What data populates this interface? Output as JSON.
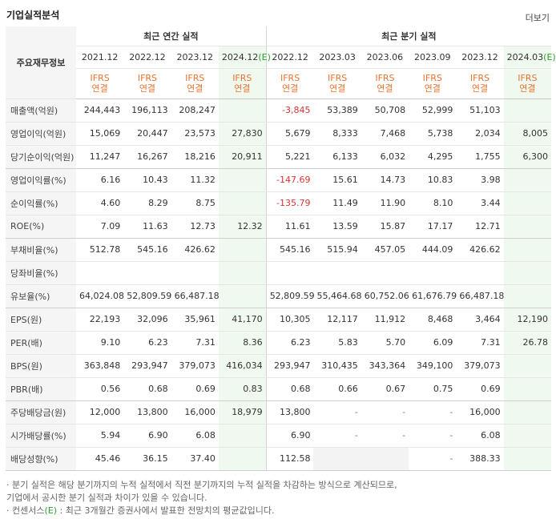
{
  "title": "기업실적분석",
  "more_label": "더보기",
  "label_header": "주요재무정보",
  "group_annual": "최근 연간 실적",
  "group_quarter": "최근 분기 실적",
  "periods": [
    "2021.12",
    "2022.12",
    "2023.12",
    "2024.12",
    "2022.12",
    "2023.03",
    "2023.06",
    "2023.09",
    "2023.12",
    "2024.03"
  ],
  "estimate_suffix": "(E)",
  "basis_top": "IFRS",
  "basis_bottom": "연결",
  "rows": [
    {
      "label": "매출액(억원)",
      "values": [
        "244,443",
        "196,113",
        "208,247",
        "",
        "-3,845",
        "53,389",
        "50,708",
        "52,999",
        "51,103",
        ""
      ]
    },
    {
      "label": "영업이익(억원)",
      "values": [
        "15,069",
        "20,447",
        "23,573",
        "27,830",
        "5,679",
        "8,333",
        "7,468",
        "5,738",
        "2,034",
        "8,005"
      ]
    },
    {
      "label": "당기순이익(억원)",
      "values": [
        "11,247",
        "16,267",
        "18,216",
        "20,911",
        "5,221",
        "6,133",
        "6,032",
        "4,295",
        "1,755",
        "6,300"
      ]
    },
    {
      "label": "영업이익률(%)",
      "values": [
        "6.16",
        "10.43",
        "11.32",
        "",
        "-147.69",
        "15.61",
        "14.73",
        "10.83",
        "3.98",
        ""
      ]
    },
    {
      "label": "순이익률(%)",
      "values": [
        "4.60",
        "8.29",
        "8.75",
        "",
        "-135.79",
        "11.49",
        "11.90",
        "8.10",
        "3.44",
        ""
      ]
    },
    {
      "label": "ROE(%)",
      "values": [
        "7.09",
        "11.63",
        "12.73",
        "12.32",
        "11.61",
        "13.59",
        "15.87",
        "17.17",
        "12.71",
        ""
      ]
    },
    {
      "label": "부채비율(%)",
      "values": [
        "512.78",
        "545.16",
        "426.62",
        "",
        "545.16",
        "515.94",
        "457.05",
        "444.09",
        "426.62",
        ""
      ]
    },
    {
      "label": "당좌비율(%)",
      "values": [
        "",
        "",
        "",
        "",
        "",
        "",
        "",
        "",
        "",
        ""
      ]
    },
    {
      "label": "유보율(%)",
      "values": [
        "64,024.08",
        "52,809.59",
        "66,487.18",
        "",
        "52,809.59",
        "55,464.68",
        "60,752.06",
        "61,676.79",
        "66,487.18",
        ""
      ]
    },
    {
      "label": "EPS(원)",
      "values": [
        "22,193",
        "32,096",
        "35,961",
        "41,170",
        "10,305",
        "12,117",
        "11,912",
        "8,468",
        "3,464",
        "12,190"
      ]
    },
    {
      "label": "PER(배)",
      "values": [
        "9.10",
        "6.23",
        "7.31",
        "8.36",
        "6.23",
        "5.83",
        "5.70",
        "6.09",
        "7.31",
        "26.78"
      ]
    },
    {
      "label": "BPS(원)",
      "values": [
        "363,848",
        "293,947",
        "379,073",
        "416,034",
        "293,947",
        "310,435",
        "343,364",
        "349,100",
        "379,073",
        ""
      ]
    },
    {
      "label": "PBR(배)",
      "values": [
        "0.56",
        "0.68",
        "0.69",
        "0.83",
        "0.68",
        "0.66",
        "0.67",
        "0.75",
        "0.69",
        ""
      ]
    },
    {
      "label": "주당배당금(원)",
      "values": [
        "12,000",
        "13,800",
        "16,000",
        "18,979",
        "13,800",
        "-",
        "-",
        "-",
        "16,000",
        ""
      ]
    },
    {
      "label": "시가배당률(%)",
      "values": [
        "5.94",
        "6.90",
        "6.08",
        "",
        "6.90",
        "-",
        "-",
        "-",
        "6.08",
        ""
      ]
    },
    {
      "label": "배당성향(%)",
      "values": [
        "45.46",
        "36.15",
        "37.40",
        "",
        "112.58",
        "",
        "",
        "-",
        "388.33",
        ""
      ]
    }
  ],
  "notes": {
    "line1": "· 분기 실적은 해당 분기까지의 누적 실적에서 직전 분기까지의 누적 실적을 차감하는 방식으로 계산되므로,",
    "line2": "  기업에서 공시한 분기 실적과 차이가 있을 수 있습니다.",
    "line3_prefix": "· 컨센서스",
    "line3_mark": "(E)",
    "line3_rest": " : 최근 3개월간 증권사에서 발표한 전망치의 평균값입니다."
  }
}
